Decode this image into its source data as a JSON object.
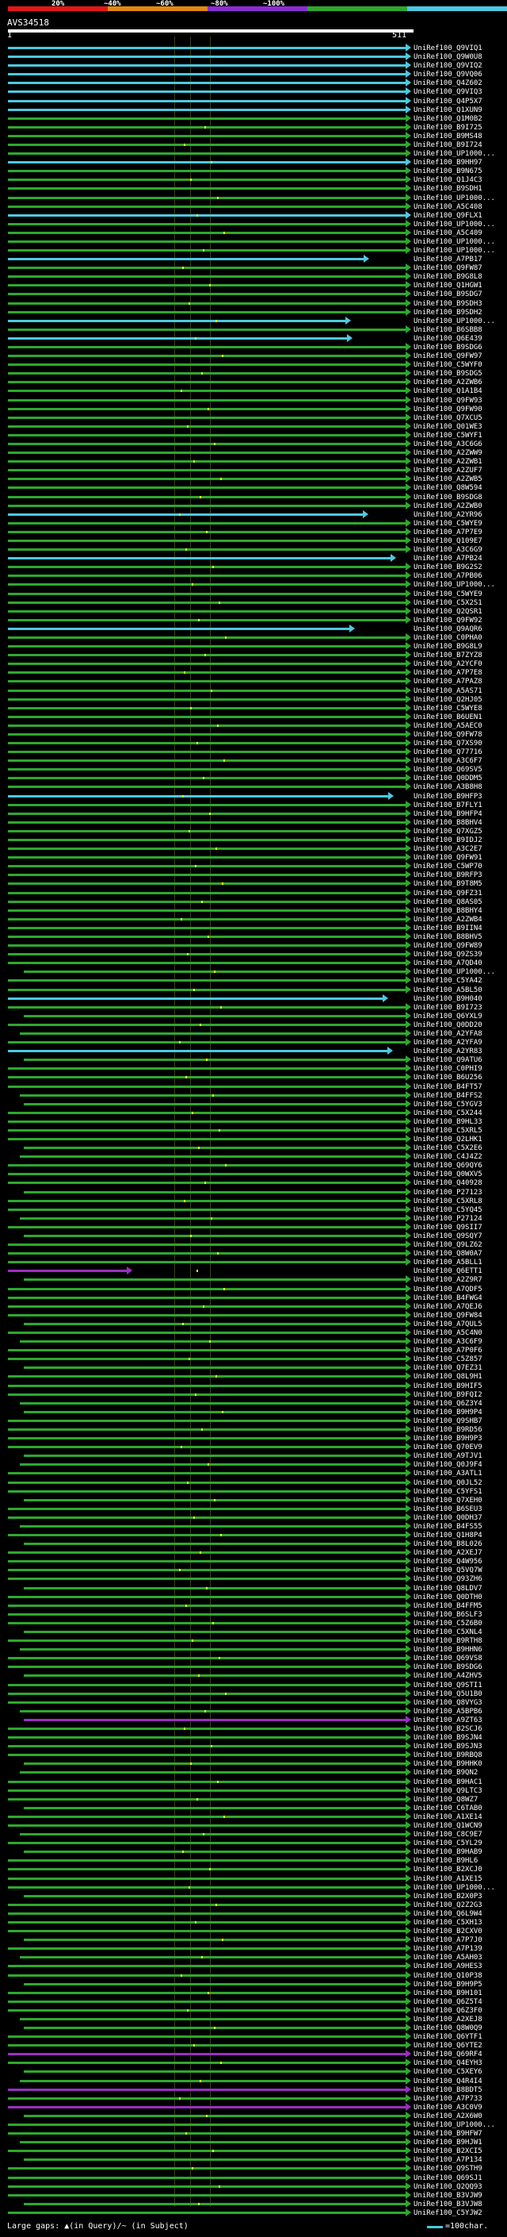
{
  "scale": {
    "labels": [
      "20%",
      "~40%",
      "~60%",
      "~80%",
      "~100%"
    ],
    "colors": [
      "#e01818",
      "#e08a10",
      "#8a2fd0",
      "#2ea82e",
      "#4cc9e0"
    ]
  },
  "query": {
    "title": "AVS34518",
    "start": "1",
    "end": "511"
  },
  "colors": {
    "cyan": "#4cc9e0",
    "green": "#2ea82e",
    "purple": "#9a2fc0",
    "gap": "#ffff00"
  },
  "hits": [
    {
      "label": "UniRef100_Q9VIQ1",
      "color": "cyan"
    },
    {
      "label": "UniRef100_Q9W0U8",
      "color": "cyan"
    },
    {
      "label": "UniRef100_Q9VIQ2",
      "color": "cyan"
    },
    {
      "label": "UniRef100_Q9VQ06",
      "color": "cyan"
    },
    {
      "label": "UniRef100_Q4Z602",
      "color": "cyan"
    },
    {
      "label": "UniRef100_Q9VIQ3",
      "color": "cyan"
    },
    {
      "label": "UniRef100_Q4P5X7",
      "color": "cyan"
    },
    {
      "label": "UniRef100_Q1XUN9",
      "color": "cyan"
    },
    {
      "label": "UniRef100_Q1M0B2",
      "color": "green"
    },
    {
      "label": "UniRef100_B9I725",
      "color": "green"
    },
    {
      "label": "UniRef100_B9MS48",
      "color": "green"
    },
    {
      "label": "UniRef100_B9I724",
      "color": "green"
    },
    {
      "label": "UniRef100_UP1000...",
      "color": "green"
    },
    {
      "label": "UniRef100_B9HH97",
      "color": "cyan"
    },
    {
      "label": "UniRef100_B9N675",
      "color": "green"
    },
    {
      "label": "UniRef100_Q1J4C3",
      "color": "green"
    },
    {
      "label": "UniRef100_B9SDH1",
      "color": "green"
    },
    {
      "label": "UniRef100_UP1000...",
      "color": "green"
    },
    {
      "label": "UniRef100_A5C408",
      "color": "green"
    },
    {
      "label": "UniRef100_Q9FLX1",
      "color": "cyan"
    },
    {
      "label": "UniRef100_UP1000...",
      "color": "green"
    },
    {
      "label": "UniRef100_A5C409",
      "color": "green"
    },
    {
      "label": "UniRef100_UP1000...",
      "color": "green"
    },
    {
      "label": "UniRef100_UP1000...",
      "color": "green"
    },
    {
      "label": "UniRef100_A7PB17",
      "color": "cyan"
    },
    {
      "label": "UniRef100_Q9FW87",
      "color": "green"
    },
    {
      "label": "UniRef100_B9G8L8",
      "color": "green"
    },
    {
      "label": "UniRef100_Q1HGW1",
      "color": "green"
    },
    {
      "label": "UniRef100_B9SDG7",
      "color": "green"
    },
    {
      "label": "UniRef100_B9SDH3",
      "color": "green"
    },
    {
      "label": "UniRef100_B9SDH2",
      "color": "green"
    },
    {
      "label": "UniRef100_UP1000...",
      "color": "cyan"
    },
    {
      "label": "UniRef100_B6SBB8",
      "color": "green"
    },
    {
      "label": "UniRef100_Q6E439",
      "color": "cyan"
    },
    {
      "label": "UniRef100_B9SDG6",
      "color": "green"
    },
    {
      "label": "UniRef100_Q9FW97",
      "color": "green"
    },
    {
      "label": "UniRef100_C5WYF0",
      "color": "green"
    },
    {
      "label": "UniRef100_B9SDG5",
      "color": "green"
    },
    {
      "label": "UniRef100_A2ZWB6",
      "color": "green"
    },
    {
      "label": "UniRef100_Q1A1B4",
      "color": "green"
    },
    {
      "label": "UniRef100_Q9FW93",
      "color": "green"
    },
    {
      "label": "UniRef100_Q9FW90",
      "color": "green"
    },
    {
      "label": "UniRef100_Q7XCU5",
      "color": "green"
    },
    {
      "label": "UniRef100_Q01WE3",
      "color": "green"
    },
    {
      "label": "UniRef100_C5WYF1",
      "color": "green"
    },
    {
      "label": "UniRef100_A3C6G6",
      "color": "green"
    },
    {
      "label": "UniRef100_A2ZWW9",
      "color": "green"
    },
    {
      "label": "UniRef100_A2ZWB1",
      "color": "green"
    },
    {
      "label": "UniRef100_A2ZUF7",
      "color": "green"
    },
    {
      "label": "UniRef100_A2ZWB5",
      "color": "green"
    },
    {
      "label": "UniRef100_Q8W594",
      "color": "green"
    },
    {
      "label": "UniRef100_B9SDG8",
      "color": "green"
    },
    {
      "label": "UniRef100_A2ZWB0",
      "color": "green"
    },
    {
      "label": "UniRef100_A2YR96",
      "color": "cyan"
    },
    {
      "label": "UniRef100_C5WYE9",
      "color": "green"
    },
    {
      "label": "UniRef100_A7P7E9",
      "color": "green"
    },
    {
      "label": "UniRef100_Q109E7",
      "color": "green"
    },
    {
      "label": "UniRef100_A3C6G9",
      "color": "green"
    },
    {
      "label": "UniRef100_A7PB24",
      "color": "cyan"
    },
    {
      "label": "UniRef100_B9G2S2",
      "color": "green"
    },
    {
      "label": "UniRef100_A7PB06",
      "color": "green"
    },
    {
      "label": "UniRef100_UP1000...",
      "color": "green"
    },
    {
      "label": "UniRef100_C5WYE9",
      "color": "green"
    },
    {
      "label": "UniRef100_C5X2S1",
      "color": "green"
    },
    {
      "label": "UniRef100_Q2QSR1",
      "color": "green"
    },
    {
      "label": "UniRef100_Q9FW92",
      "color": "green"
    },
    {
      "label": "UniRef100_Q9AQR6",
      "color": "cyan"
    },
    {
      "label": "UniRef100_C0PHA0",
      "color": "green"
    },
    {
      "label": "UniRef100_B9G8L9",
      "color": "green"
    },
    {
      "label": "UniRef100_B7ZYZ8",
      "color": "green"
    },
    {
      "label": "UniRef100_A2YCF0",
      "color": "green"
    },
    {
      "label": "UniRef100_A7P7E8",
      "color": "green"
    },
    {
      "label": "UniRef100_A7PAZ8",
      "color": "green"
    },
    {
      "label": "UniRef100_A5AS71",
      "color": "green"
    },
    {
      "label": "UniRef100_Q2HJ05",
      "color": "green"
    },
    {
      "label": "UniRef100_C5WYE8",
      "color": "green"
    },
    {
      "label": "UniRef100_B6UEN1",
      "color": "green"
    },
    {
      "label": "UniRef100_A5AEC0",
      "color": "green"
    },
    {
      "label": "UniRef100_Q9FW78",
      "color": "green"
    },
    {
      "label": "UniRef100_Q7XS90",
      "color": "green"
    },
    {
      "label": "UniRef100_Q77716",
      "color": "green"
    },
    {
      "label": "UniRef100_A3C6F7",
      "color": "green"
    },
    {
      "label": "UniRef100_Q69SV5",
      "color": "green"
    },
    {
      "label": "UniRef100_Q0DDM5",
      "color": "green"
    },
    {
      "label": "UniRef100_A3B8H8",
      "color": "green"
    },
    {
      "label": "UniRef100_B9HFP3",
      "color": "cyan"
    },
    {
      "label": "UniRef100_B7FLY1",
      "color": "green"
    },
    {
      "label": "UniRef100_B9HFP4",
      "color": "green"
    },
    {
      "label": "UniRef100_B8BHV4",
      "color": "green"
    },
    {
      "label": "UniRef100_Q7XGZ5",
      "color": "green"
    },
    {
      "label": "UniRef100_B9IDJ2",
      "color": "green"
    },
    {
      "label": "UniRef100_A3C2E7",
      "color": "green"
    },
    {
      "label": "UniRef100_Q9FW91",
      "color": "green"
    },
    {
      "label": "UniRef100_C5WP70",
      "color": "green"
    },
    {
      "label": "UniRef100_B9RFP3",
      "color": "green"
    },
    {
      "label": "UniRef100_B9T8M5",
      "color": "green"
    },
    {
      "label": "UniRef100_Q9FZ31",
      "color": "green"
    },
    {
      "label": "UniRef100_Q8AS05",
      "color": "green"
    },
    {
      "label": "UniRef100_B8BHY4",
      "color": "green"
    },
    {
      "label": "UniRef100_A2ZWB4",
      "color": "green"
    },
    {
      "label": "UniRef100_B9IIN4",
      "color": "green"
    },
    {
      "label": "UniRef100_B8BHV5",
      "color": "green"
    },
    {
      "label": "UniRef100_Q9FW89",
      "color": "green"
    },
    {
      "label": "UniRef100_Q9ZS39",
      "color": "green"
    },
    {
      "label": "UniRef100_A7QD40",
      "color": "green"
    },
    {
      "label": "UniRef100_UP1000...",
      "color": "green"
    },
    {
      "label": "UniRef100_C5YA42",
      "color": "green"
    },
    {
      "label": "UniRef100_A5BL50",
      "color": "green"
    },
    {
      "label": "UniRef100_B9H040",
      "color": "cyan"
    },
    {
      "label": "UniRef100_B9I723",
      "color": "green"
    },
    {
      "label": "UniRef100_Q6YXL9",
      "color": "green"
    },
    {
      "label": "UniRef100_Q0DD20",
      "color": "green"
    },
    {
      "label": "UniRef100_A2YFA8",
      "color": "green"
    },
    {
      "label": "UniRef100_A2YFA9",
      "color": "green"
    },
    {
      "label": "UniRef100_A2YR83",
      "color": "cyan"
    },
    {
      "label": "UniRef100_Q9ATU6",
      "color": "green"
    },
    {
      "label": "UniRef100_C0PHI9",
      "color": "green"
    },
    {
      "label": "UniRef100_B6U256",
      "color": "green"
    },
    {
      "label": "UniRef100_B4FT57",
      "color": "green"
    },
    {
      "label": "UniRef100_B4FFS2",
      "color": "green"
    },
    {
      "label": "UniRef100_C5YGV3",
      "color": "green"
    },
    {
      "label": "UniRef100_C5X244",
      "color": "green"
    },
    {
      "label": "UniRef100_B9HL33",
      "color": "green"
    },
    {
      "label": "UniRef100_C5XRL5",
      "color": "green"
    },
    {
      "label": "UniRef100_Q2LHK1",
      "color": "green"
    },
    {
      "label": "UniRef100_C5X2E6",
      "color": "green"
    },
    {
      "label": "UniRef100_C4J4Z2",
      "color": "green"
    },
    {
      "label": "UniRef100_Q69QY6",
      "color": "green"
    },
    {
      "label": "UniRef100_Q0WXV5",
      "color": "green"
    },
    {
      "label": "UniRef100_Q40928",
      "color": "green"
    },
    {
      "label": "UniRef100_P27123",
      "color": "green"
    },
    {
      "label": "UniRef100_C5XRL8",
      "color": "green"
    },
    {
      "label": "UniRef100_C5YQ45",
      "color": "green"
    },
    {
      "label": "UniRef100_P27124",
      "color": "green"
    },
    {
      "label": "UniRef100_Q9SII7",
      "color": "green"
    },
    {
      "label": "UniRef100_Q9SQY7",
      "color": "green"
    },
    {
      "label": "UniRef100_Q9LZ62",
      "color": "green"
    },
    {
      "label": "UniRef100_Q8W0A7",
      "color": "green"
    },
    {
      "label": "UniRef100_A5BLL1",
      "color": "green"
    },
    {
      "label": "UniRef100_Q6ETT1",
      "color": "purple"
    },
    {
      "label": "UniRef100_A2Z9R7",
      "color": "green"
    },
    {
      "label": "UniRef100_A7QDF5",
      "color": "green"
    },
    {
      "label": "UniRef100_B4FWG4",
      "color": "green"
    },
    {
      "label": "UniRef100_A7QEJ6",
      "color": "green"
    },
    {
      "label": "UniRef100_Q9FW84",
      "color": "green"
    },
    {
      "label": "UniRef100_A7QUL5",
      "color": "green"
    },
    {
      "label": "UniRef100_A5C4N0",
      "color": "green"
    },
    {
      "label": "UniRef100_A3C6F9",
      "color": "green"
    },
    {
      "label": "UniRef100_A7P0F6",
      "color": "green"
    },
    {
      "label": "UniRef100_C5Z857",
      "color": "green"
    },
    {
      "label": "UniRef100_Q7EZ31",
      "color": "green"
    },
    {
      "label": "UniRef100_Q8L9H1",
      "color": "green"
    },
    {
      "label": "UniRef100_B9HIF5",
      "color": "green"
    },
    {
      "label": "UniRef100_B9FQI2",
      "color": "green"
    },
    {
      "label": "UniRef100_Q6Z3Y4",
      "color": "green"
    },
    {
      "label": "UniRef100_B9H9P4",
      "color": "green"
    },
    {
      "label": "UniRef100_Q9SHB7",
      "color": "green"
    },
    {
      "label": "UniRef100_B9RD56",
      "color": "green"
    },
    {
      "label": "UniRef100_B9H9P3",
      "color": "green"
    },
    {
      "label": "UniRef100_Q70EV9",
      "color": "green"
    },
    {
      "label": "UniRef100_A9TJV1",
      "color": "green"
    },
    {
      "label": "UniRef100_Q0J9F4",
      "color": "green"
    },
    {
      "label": "UniRef100_A3ATL1",
      "color": "green"
    },
    {
      "label": "UniRef100_Q0JL52",
      "color": "green"
    },
    {
      "label": "UniRef100_C5YFS1",
      "color": "green"
    },
    {
      "label": "UniRef100_Q7XEH0",
      "color": "green"
    },
    {
      "label": "UniRef100_B6SEU3",
      "color": "green"
    },
    {
      "label": "UniRef100_Q0DH37",
      "color": "green"
    },
    {
      "label": "UniRef100_B4FS55",
      "color": "green"
    },
    {
      "label": "UniRef100_Q1H8P4",
      "color": "green"
    },
    {
      "label": "UniRef100_B8L026",
      "color": "green"
    },
    {
      "label": "UniRef100_A2XEJ7",
      "color": "green"
    },
    {
      "label": "UniRef100_Q4W956",
      "color": "green"
    },
    {
      "label": "UniRef100_Q5VQ7W",
      "color": "green"
    },
    {
      "label": "UniRef100_Q93ZH6",
      "color": "green"
    },
    {
      "label": "UniRef100_Q8LDV7",
      "color": "green"
    },
    {
      "label": "UniRef100_Q0DTH0",
      "color": "green"
    },
    {
      "label": "UniRef100_B4FFM5",
      "color": "green"
    },
    {
      "label": "UniRef100_B6SLF3",
      "color": "green"
    },
    {
      "label": "UniRef100_C5Z6B0",
      "color": "green"
    },
    {
      "label": "UniRef100_C5XNL4",
      "color": "green"
    },
    {
      "label": "UniRef100_B9RTH8",
      "color": "green"
    },
    {
      "label": "UniRef100_B9HHN6",
      "color": "green"
    },
    {
      "label": "UniRef100_Q69VS8",
      "color": "green"
    },
    {
      "label": "UniRef100_B9SDG6",
      "color": "green"
    },
    {
      "label": "UniRef100_A4ZHV5",
      "color": "green"
    },
    {
      "label": "UniRef100_Q9STI1",
      "color": "green"
    },
    {
      "label": "UniRef100_Q5U1B0",
      "color": "green"
    },
    {
      "label": "UniRef100_Q8VYG3",
      "color": "green"
    },
    {
      "label": "UniRef100_A5BPB6",
      "color": "green"
    },
    {
      "label": "UniRef100_A9ZT63",
      "color": "purple"
    },
    {
      "label": "UniRef100_B2SCJ6",
      "color": "green"
    },
    {
      "label": "UniRef100_B9SJN4",
      "color": "green"
    },
    {
      "label": "UniRef100_B9SJN3",
      "color": "green"
    },
    {
      "label": "UniRef100_B9RBQ8",
      "color": "green"
    },
    {
      "label": "UniRef100_B9HHK0",
      "color": "green"
    },
    {
      "label": "UniRef100_B9QN2",
      "color": "green"
    },
    {
      "label": "UniRef100_B9HAC1",
      "color": "green"
    },
    {
      "label": "UniRef100_Q9LTC3",
      "color": "green"
    },
    {
      "label": "UniRef100_Q8WZ7",
      "color": "green"
    },
    {
      "label": "UniRef100_C6TAB0",
      "color": "green"
    },
    {
      "label": "UniRef100_A1XE14",
      "color": "green"
    },
    {
      "label": "UniRef100_Q1WCN9",
      "color": "green"
    },
    {
      "label": "UniRef100_C8C9E7",
      "color": "green"
    },
    {
      "label": "UniRef100_C5YL29",
      "color": "green"
    },
    {
      "label": "UniRef100_B9HAB9",
      "color": "green"
    },
    {
      "label": "UniRef100_B9HL6",
      "color": "green"
    },
    {
      "label": "UniRef100_B2XCJ0",
      "color": "green"
    },
    {
      "label": "UniRef100_A1XE15",
      "color": "green"
    },
    {
      "label": "UniRef100_UP1000...",
      "color": "green"
    },
    {
      "label": "UniRef100_B2X0P3",
      "color": "green"
    },
    {
      "label": "UniRef100_Q2Z2G3",
      "color": "green"
    },
    {
      "label": "UniRef100_Q6L9W4",
      "color": "green"
    },
    {
      "label": "UniRef100_C5XH13",
      "color": "green"
    },
    {
      "label": "UniRef100_B2CXV0",
      "color": "green"
    },
    {
      "label": "UniRef100_A7P7J0",
      "color": "green"
    },
    {
      "label": "UniRef100_A7P139",
      "color": "green"
    },
    {
      "label": "UniRef100_A5AH03",
      "color": "green"
    },
    {
      "label": "UniRef100_A9HES3",
      "color": "green"
    },
    {
      "label": "UniRef100_Q10P38",
      "color": "green"
    },
    {
      "label": "UniRef100_B9H9P5",
      "color": "green"
    },
    {
      "label": "UniRef100_B9H101",
      "color": "green"
    },
    {
      "label": "UniRef100_Q6Z5T4",
      "color": "green"
    },
    {
      "label": "UniRef100_Q6Z3F0",
      "color": "green"
    },
    {
      "label": "UniRef100_A2XEJ8",
      "color": "green"
    },
    {
      "label": "UniRef100_Q8W0Q9",
      "color": "green"
    },
    {
      "label": "UniRef100_Q6YTF1",
      "color": "green"
    },
    {
      "label": "UniRef100_Q6YTE2",
      "color": "green"
    },
    {
      "label": "UniRef100_Q69RF4",
      "color": "purple"
    },
    {
      "label": "UniRef100_Q4EYH3",
      "color": "green"
    },
    {
      "label": "UniRef100_C5XEY6",
      "color": "green"
    },
    {
      "label": "UniRef100_Q4R4I4",
      "color": "green"
    },
    {
      "label": "UniRef100_B8BDT5",
      "color": "purple"
    },
    {
      "label": "UniRef100_A7P733",
      "color": "green"
    },
    {
      "label": "UniRef100_A3C0V9",
      "color": "purple"
    },
    {
      "label": "UniRef100_A2X6W0",
      "color": "green"
    },
    {
      "label": "UniRef100_UP1000...",
      "color": "green"
    },
    {
      "label": "UniRef100_B9HFW7",
      "color": "green"
    },
    {
      "label": "UniRef100_B9HJW1",
      "color": "green"
    },
    {
      "label": "UniRef100_B2XCI5",
      "color": "green"
    },
    {
      "label": "UniRef100_A7P134",
      "color": "green"
    },
    {
      "label": "UniRef100_Q9STH9",
      "color": "green"
    },
    {
      "label": "UniRef100_Q69SJ1",
      "color": "green"
    },
    {
      "label": "UniRef100_Q2QQ93",
      "color": "green"
    },
    {
      "label": "UniRef100_B3VJW9",
      "color": "green"
    },
    {
      "label": "UniRef100_B3VJW8",
      "color": "green"
    },
    {
      "label": "UniRef100_C5YJW2",
      "color": "green"
    }
  ],
  "legend": {
    "text": "Large gaps: ▲(in Query)/~ (in Subject)",
    "char": "=100char."
  }
}
